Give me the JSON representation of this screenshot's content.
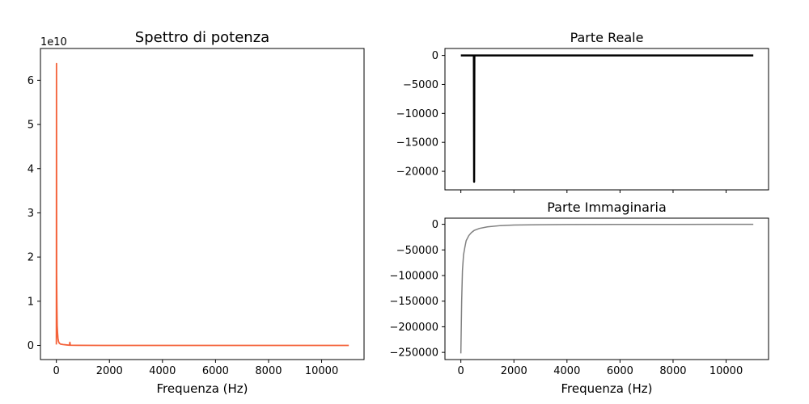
{
  "chart_data": [
    {
      "type": "line",
      "title": "Spettro di potenza",
      "xlabel": "Frequenza (Hz)",
      "ylabel": "",
      "y_offset_label": "1e10",
      "xlim": [
        -600,
        11600
      ],
      "ylim": [
        -0.32,
        6.72
      ],
      "x_ticks": [
        0,
        2000,
        4000,
        6000,
        8000,
        10000
      ],
      "y_ticks": [
        0,
        1,
        2,
        3,
        4,
        5,
        6
      ],
      "color": "#f4623a",
      "grid": false,
      "series": [
        {
          "name": "",
          "points": [
            [
              0,
              0.02
            ],
            [
              5,
              6.38
            ],
            [
              10,
              1.6
            ],
            [
              20,
              0.9
            ],
            [
              30,
              0.45
            ],
            [
              45,
              0.28
            ],
            [
              60,
              0.16
            ],
            [
              80,
              0.09
            ],
            [
              110,
              0.05
            ],
            [
              160,
              0.03
            ],
            [
              250,
              0.02
            ],
            [
              400,
              0.01
            ],
            [
              495,
              0.005
            ],
            [
              510,
              0.07
            ],
            [
              525,
              0.005
            ],
            [
              800,
              0.002
            ],
            [
              2000,
              0.0
            ],
            [
              11025,
              0.0
            ]
          ]
        }
      ]
    },
    {
      "type": "line",
      "title": "Parte Reale",
      "xlabel": "",
      "ylabel": "",
      "xlim": [
        -600,
        11600
      ],
      "ylim": [
        -23200,
        1200
      ],
      "x_ticks": [
        0,
        2000,
        4000,
        6000,
        8000,
        10000
      ],
      "x_tick_labels_visible": false,
      "y_ticks": [
        0,
        -5000,
        -10000,
        -15000,
        -20000
      ],
      "color": "#000000",
      "grid": false,
      "series": [
        {
          "name": "",
          "points": [
            [
              0,
              0
            ],
            [
              490,
              0
            ],
            [
              500,
              -21800
            ],
            [
              510,
              0
            ],
            [
              11025,
              0
            ]
          ]
        }
      ]
    },
    {
      "type": "line",
      "title": "Parte Immaginaria",
      "xlabel": "Frequenza (Hz)",
      "ylabel": "",
      "xlim": [
        -600,
        11600
      ],
      "ylim": [
        -264000,
        12000
      ],
      "x_ticks": [
        0,
        2000,
        4000,
        6000,
        8000,
        10000
      ],
      "y_ticks": [
        0,
        -50000,
        -100000,
        -150000,
        -200000,
        -250000
      ],
      "color": "#808080",
      "grid": false,
      "series": [
        {
          "name": "",
          "points": [
            [
              0,
              -252000
            ],
            [
              30,
              -150000
            ],
            [
              60,
              -90000
            ],
            [
              100,
              -60000
            ],
            [
              150,
              -45000
            ],
            [
              200,
              -32000
            ],
            [
              300,
              -22000
            ],
            [
              400,
              -16000
            ],
            [
              500,
              -12000
            ],
            [
              700,
              -8000
            ],
            [
              1000,
              -5000
            ],
            [
              1500,
              -2500
            ],
            [
              2000,
              -1500
            ],
            [
              3000,
              -800
            ],
            [
              4000,
              -500
            ],
            [
              6000,
              -250
            ],
            [
              8000,
              -150
            ],
            [
              11025,
              -80
            ]
          ]
        }
      ]
    }
  ]
}
